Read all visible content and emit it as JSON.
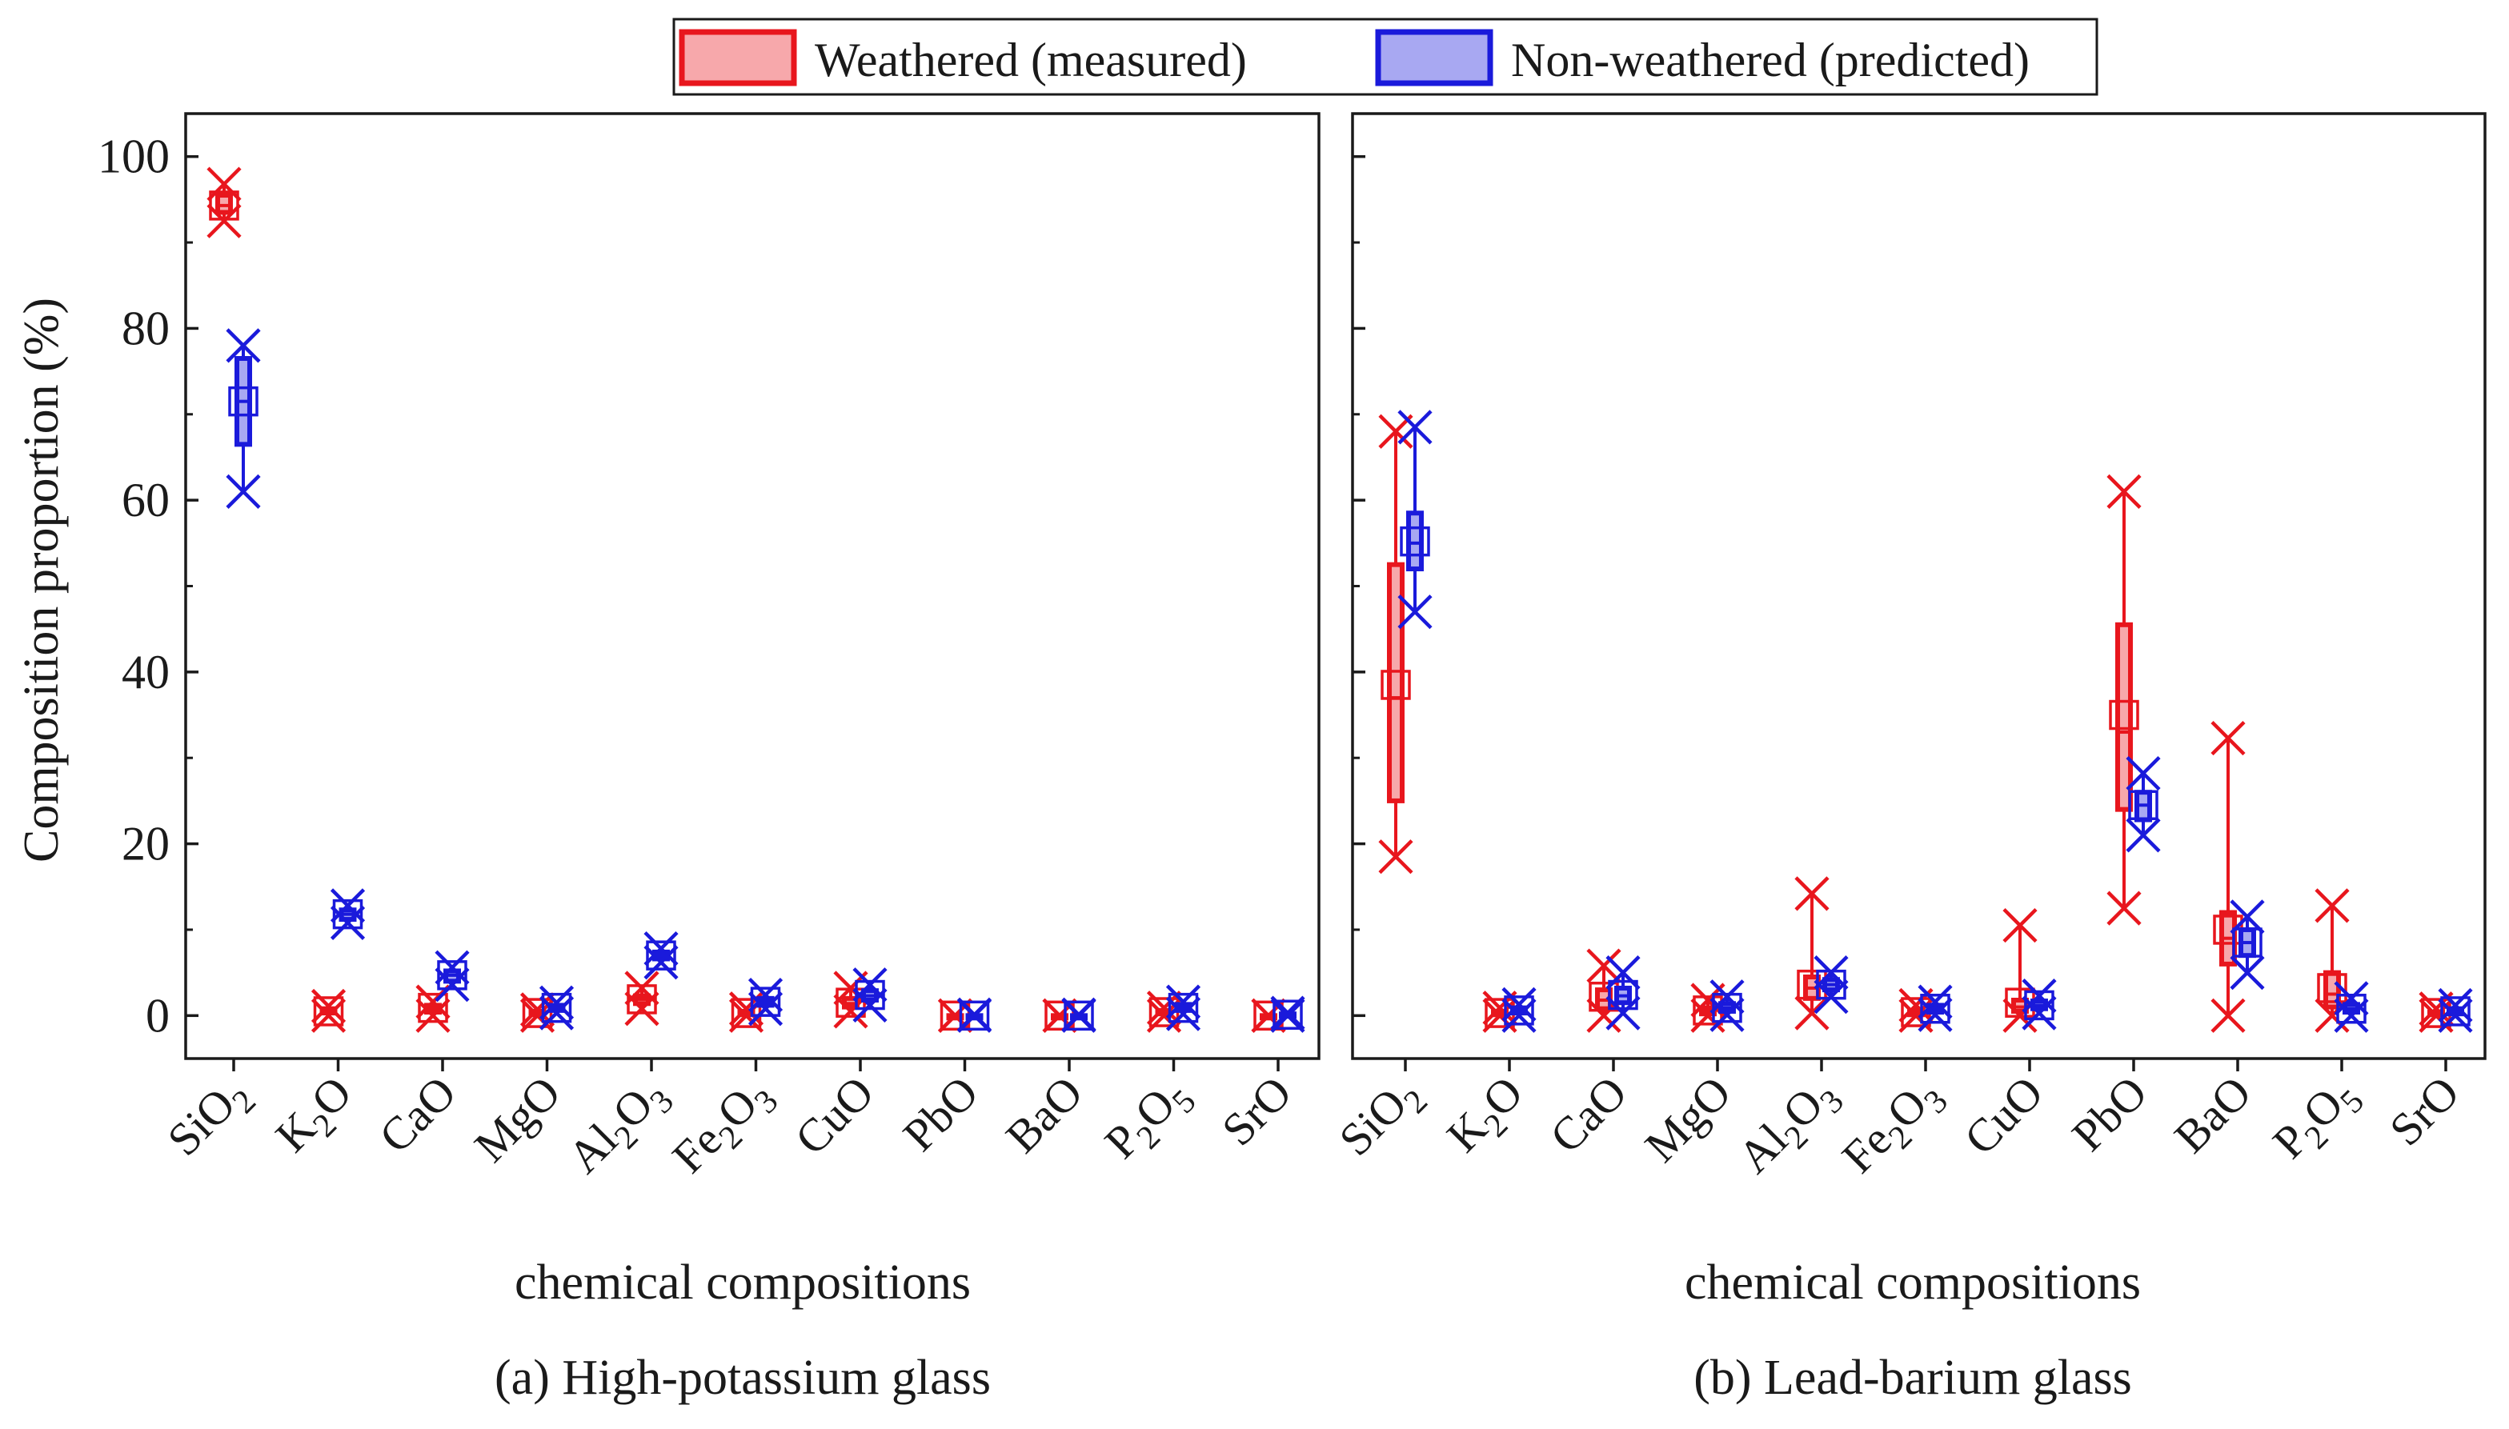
{
  "legend": {
    "weathered": "Weathered (measured)",
    "non_weathered": "Non-weathered (predicted)"
  },
  "colors": {
    "weathered": "#e8161d",
    "weathered_fill": "#f7a8ab",
    "non_weathered": "#1a1adb",
    "non_weathered_fill": "#a8a8f2",
    "axis": "#1a1a1a"
  },
  "ylabel": "Composition proportion (%)",
  "chart_data": [
    {
      "type": "box",
      "panel": "a",
      "title": "(a) High-potassium glass",
      "xlabel": "chemical compositions",
      "ylim": [
        -5,
        105
      ],
      "yticks": [
        0,
        20,
        40,
        60,
        80,
        100
      ],
      "categories": [
        {
          "base": "Si",
          "sub": "O",
          "idx": "2"
        },
        {
          "base": "K",
          "sub": "2",
          "idx": "O"
        },
        {
          "base": "CaO"
        },
        {
          "base": "MgO"
        },
        {
          "base": "Al",
          "sub": "2",
          "mid": "O",
          "idx": "3"
        },
        {
          "base": "Fe",
          "sub": "2",
          "mid": "O",
          "idx": "3"
        },
        {
          "base": "CuO"
        },
        {
          "base": "PbO"
        },
        {
          "base": "BaO"
        },
        {
          "base": "P",
          "sub": "2",
          "mid": "O",
          "idx": "5"
        },
        {
          "base": "SrO"
        }
      ],
      "series": [
        {
          "name": "Weathered (measured)",
          "boxes": [
            {
              "min": 92.5,
              "q1": 93.5,
              "median": 94.3,
              "q3": 95.5,
              "max": 96.8,
              "mean": 94.3
            },
            {
              "min": 0,
              "q1": 0.3,
              "median": 0.5,
              "q3": 0.8,
              "max": 1.1,
              "mean": 0.5
            },
            {
              "min": 0,
              "q1": 0.4,
              "median": 0.8,
              "q3": 1.2,
              "max": 1.6,
              "mean": 0.9
            },
            {
              "min": 0,
              "q1": 0.1,
              "median": 0.3,
              "q3": 0.5,
              "max": 0.7,
              "mean": 0.3
            },
            {
              "min": 0.8,
              "q1": 1.4,
              "median": 1.9,
              "q3": 2.3,
              "max": 3.2,
              "mean": 1.9
            },
            {
              "min": 0,
              "q1": 0.1,
              "median": 0.3,
              "q3": 0.5,
              "max": 0.8,
              "mean": 0.3
            },
            {
              "min": 0.5,
              "q1": 1.0,
              "median": 1.4,
              "q3": 2.0,
              "max": 3.2,
              "mean": 1.5
            },
            {
              "min": 0,
              "q1": 0,
              "median": 0,
              "q3": 0,
              "max": 0,
              "mean": 0
            },
            {
              "min": 0,
              "q1": 0,
              "median": 0,
              "q3": 0,
              "max": 0,
              "mean": 0
            },
            {
              "min": 0,
              "q1": 0.2,
              "median": 0.4,
              "q3": 0.6,
              "max": 0.9,
              "mean": 0.4
            },
            {
              "min": 0,
              "q1": 0,
              "median": 0,
              "q3": 0,
              "max": 0,
              "mean": 0
            }
          ]
        },
        {
          "name": "Non-weathered (predicted)",
          "boxes": [
            {
              "min": 61,
              "q1": 66.5,
              "median": 71.5,
              "q3": 76.5,
              "max": 78,
              "mean": 71.5
            },
            {
              "min": 10.8,
              "q1": 11.2,
              "median": 11.8,
              "q3": 12.3,
              "max": 12.8,
              "mean": 11.8
            },
            {
              "min": 3.6,
              "q1": 4.0,
              "median": 4.7,
              "q3": 5.2,
              "max": 5.6,
              "mean": 4.7
            },
            {
              "min": 0.3,
              "q1": 0.6,
              "median": 0.9,
              "q3": 1.2,
              "max": 1.5,
              "mean": 0.9
            },
            {
              "min": 6.2,
              "q1": 6.6,
              "median": 7.0,
              "q3": 7.4,
              "max": 7.8,
              "mean": 7.0
            },
            {
              "min": 0.8,
              "q1": 1.2,
              "median": 1.6,
              "q3": 2.0,
              "max": 2.4,
              "mean": 1.6
            },
            {
              "min": 1.2,
              "q1": 1.8,
              "median": 2.3,
              "q3": 2.9,
              "max": 3.6,
              "mean": 2.4
            },
            {
              "min": 0,
              "q1": 0,
              "median": 0,
              "q3": 0,
              "max": 0.1,
              "mean": 0
            },
            {
              "min": 0,
              "q1": 0,
              "median": 0,
              "q3": 0,
              "max": 0.1,
              "mean": 0
            },
            {
              "min": 0.2,
              "q1": 0.6,
              "median": 0.9,
              "q3": 1.3,
              "max": 1.6,
              "mean": 0.9
            },
            {
              "min": 0,
              "q1": 0,
              "median": 0.1,
              "q3": 0.2,
              "max": 0.3,
              "mean": 0.1
            }
          ]
        }
      ]
    },
    {
      "type": "box",
      "panel": "b",
      "title": "(b) Lead-barium glass",
      "xlabel": "chemical compositions",
      "ylim": [
        -5,
        105
      ],
      "yticks": [
        0,
        20,
        40,
        60,
        80,
        100
      ],
      "categories": [
        {
          "base": "Si",
          "sub": "O",
          "idx": "2"
        },
        {
          "base": "K",
          "sub": "2",
          "idx": "O"
        },
        {
          "base": "CaO"
        },
        {
          "base": "MgO"
        },
        {
          "base": "Al",
          "sub": "2",
          "mid": "O",
          "idx": "3"
        },
        {
          "base": "Fe",
          "sub": "2",
          "mid": "O",
          "idx": "3"
        },
        {
          "base": "CuO"
        },
        {
          "base": "PbO"
        },
        {
          "base": "BaO"
        },
        {
          "base": "P",
          "sub": "2",
          "mid": "O",
          "idx": "5"
        },
        {
          "base": "SrO"
        }
      ],
      "series": [
        {
          "name": "Weathered (measured)",
          "boxes": [
            {
              "min": 18.5,
              "q1": 25,
              "median": 37,
              "q3": 52.5,
              "max": 68,
              "mean": 38.5
            },
            {
              "min": 0,
              "q1": 0.1,
              "median": 0.3,
              "q3": 0.5,
              "max": 0.9,
              "mean": 0.3
            },
            {
              "min": 0,
              "q1": 0.8,
              "median": 1.8,
              "q3": 3.0,
              "max": 5.8,
              "mean": 2.2
            },
            {
              "min": 0,
              "q1": 0.2,
              "median": 0.5,
              "q3": 0.9,
              "max": 1.8,
              "mean": 0.6
            },
            {
              "min": 0.3,
              "q1": 2.0,
              "median": 3.2,
              "q3": 4.5,
              "max": 14.2,
              "mean": 3.6
            },
            {
              "min": 0,
              "q1": 0.1,
              "median": 0.3,
              "q3": 0.6,
              "max": 1.2,
              "mean": 0.4
            },
            {
              "min": 0,
              "q1": 0.5,
              "median": 1.0,
              "q3": 1.8,
              "max": 10.5,
              "mean": 1.5
            },
            {
              "min": 12.5,
              "q1": 24,
              "median": 33,
              "q3": 45.5,
              "max": 61,
              "mean": 35
            },
            {
              "min": 0,
              "q1": 6.0,
              "median": 9.0,
              "q3": 12.0,
              "max": 32.3,
              "mean": 10.0
            },
            {
              "min": 0,
              "q1": 1.0,
              "median": 2.5,
              "q3": 5.0,
              "max": 12.8,
              "mean": 3.2
            },
            {
              "min": 0,
              "q1": 0.1,
              "median": 0.2,
              "q3": 0.4,
              "max": 0.8,
              "mean": 0.3
            }
          ]
        },
        {
          "name": "Non-weathered (predicted)",
          "boxes": [
            {
              "min": 47,
              "q1": 52,
              "median": 55,
              "q3": 58.5,
              "max": 68.5,
              "mean": 55.2
            },
            {
              "min": 0,
              "q1": 0.3,
              "median": 0.6,
              "q3": 0.9,
              "max": 1.3,
              "mean": 0.6
            },
            {
              "min": 0.3,
              "q1": 1.5,
              "median": 2.3,
              "q3": 3.2,
              "max": 5.0,
              "mean": 2.4
            },
            {
              "min": 0.1,
              "q1": 0.5,
              "median": 0.9,
              "q3": 1.4,
              "max": 2.2,
              "mean": 0.9
            },
            {
              "min": 2.2,
              "q1": 3.0,
              "median": 3.6,
              "q3": 4.2,
              "max": 5.0,
              "mean": 3.6
            },
            {
              "min": 0.1,
              "q1": 0.4,
              "median": 0.8,
              "q3": 1.2,
              "max": 1.6,
              "mean": 0.8
            },
            {
              "min": 0.3,
              "q1": 0.8,
              "median": 1.2,
              "q3": 1.7,
              "max": 2.3,
              "mean": 1.2
            },
            {
              "min": 21,
              "q1": 22.8,
              "median": 24.5,
              "q3": 26,
              "max": 28.2,
              "mean": 24.5
            },
            {
              "min": 5.0,
              "q1": 7.0,
              "median": 8.5,
              "q3": 10,
              "max": 11.5,
              "mean": 8.5
            },
            {
              "min": 0,
              "q1": 0.4,
              "median": 0.8,
              "q3": 1.3,
              "max": 2.0,
              "mean": 0.8
            },
            {
              "min": 0,
              "q1": 0.2,
              "median": 0.5,
              "q3": 0.8,
              "max": 1.2,
              "mean": 0.5
            }
          ]
        }
      ]
    }
  ]
}
